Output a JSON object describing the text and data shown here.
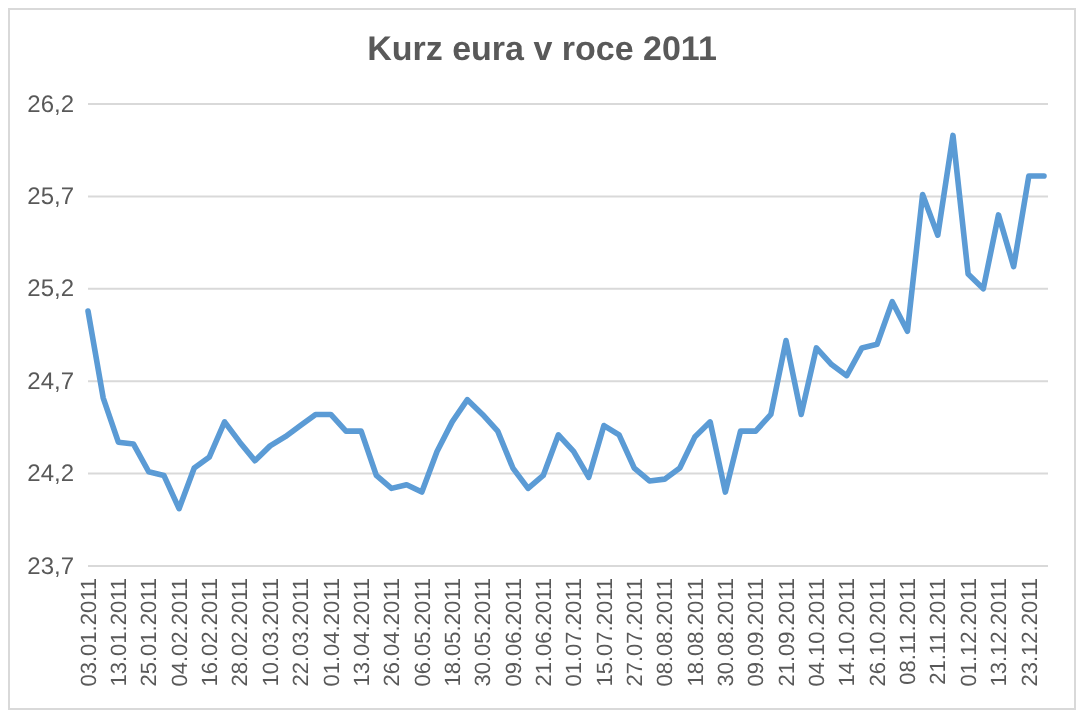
{
  "chart_data": {
    "type": "line",
    "title": "Kurz eura v roce 2011",
    "categories": [
      "03.01.2011",
      null,
      "13.01.2011",
      null,
      "25.01.2011",
      null,
      "04.02.2011",
      null,
      "16.02.2011",
      null,
      "28.02.2011",
      null,
      "10.03.2011",
      null,
      "22.03.2011",
      null,
      "01.04.2011",
      null,
      "13.04.2011",
      null,
      "26.04.2011",
      null,
      "06.05.2011",
      null,
      "18.05.2011",
      null,
      "30.05.2011",
      null,
      "09.06.2011",
      null,
      "21.06.2011",
      null,
      "01.07.2011",
      null,
      "15.07.2011",
      null,
      "27.07.2011",
      null,
      "08.08.2011",
      null,
      "18.08.2011",
      null,
      "30.08.2011",
      null,
      "09.09.2011",
      null,
      "21.09.2011",
      null,
      "04.10.2011",
      null,
      "14.10.2011",
      null,
      "26.10.2011",
      null,
      "08.11.2011",
      null,
      "21.11.2011",
      null,
      "01.12.2011",
      null,
      "13.12.2011",
      null,
      "23.12.2011",
      null
    ],
    "series": [
      {
        "color": "#5b9bd5",
        "values": [
          25.08,
          24.61,
          24.37,
          24.36,
          24.21,
          24.19,
          24.01,
          24.23,
          24.29,
          24.48,
          24.37,
          24.27,
          24.35,
          24.4,
          24.46,
          24.52,
          24.52,
          24.43,
          24.43,
          24.19,
          24.12,
          24.14,
          24.1,
          24.32,
          24.48,
          24.6,
          24.52,
          24.43,
          24.23,
          24.12,
          24.19,
          24.41,
          24.32,
          24.18,
          24.46,
          24.41,
          24.23,
          24.16,
          24.17,
          24.23,
          24.4,
          24.48,
          24.1,
          24.43,
          24.43,
          24.52,
          24.92,
          24.52,
          24.88,
          24.79,
          24.73,
          24.88,
          24.9,
          25.13,
          24.97,
          25.71,
          25.49,
          26.03,
          25.28,
          25.2,
          25.6,
          25.32,
          25.81,
          25.81
        ]
      }
    ],
    "ylim": [
      23.7,
      26.2
    ],
    "yticks": [
      {
        "value": 23.7,
        "label": "23,7"
      },
      {
        "value": 24.2,
        "label": "24,2"
      },
      {
        "value": 24.7,
        "label": "24,7"
      },
      {
        "value": 25.2,
        "label": "25,2"
      },
      {
        "value": 25.7,
        "label": "25,7"
      },
      {
        "value": 26.2,
        "label": "26,2"
      }
    ],
    "grid": "y",
    "marker": "none",
    "line_style": "solid"
  }
}
